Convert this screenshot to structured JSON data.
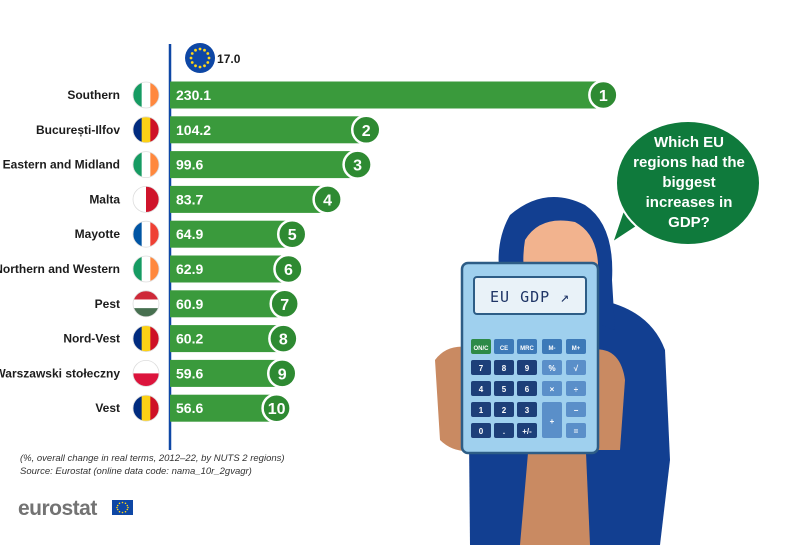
{
  "chart_data": {
    "type": "bar",
    "orientation": "horizontal",
    "reference": {
      "label": "EU",
      "value": 17.0,
      "display": "17.0"
    },
    "categories": [
      "Southern",
      "București-Ilfov",
      "Eastern and Midland",
      "Malta",
      "Mayotte",
      "Northern and Western",
      "Pest",
      "Nord-Vest",
      "Warszawski stołeczny",
      "Vest"
    ],
    "values": [
      230.1,
      104.2,
      99.6,
      83.7,
      64.9,
      62.9,
      60.9,
      60.2,
      59.6,
      56.6
    ],
    "value_labels": [
      "230.1",
      "104.2",
      "99.6",
      "83.7",
      "64.9",
      "62.9",
      "60.9",
      "60.2",
      "59.6",
      "56.6"
    ],
    "ranks": [
      "1",
      "2",
      "3",
      "4",
      "5",
      "6",
      "7",
      "8",
      "9",
      "10"
    ],
    "countries": [
      "Ireland",
      "Romania",
      "Ireland",
      "Malta",
      "France",
      "Ireland",
      "Hungary",
      "Romania",
      "Poland",
      "Romania"
    ],
    "flag_stripes": [
      [
        "#169b62",
        "#ffffff",
        "#ff883e"
      ],
      [
        "#002b7f",
        "#fcd116",
        "#ce1126"
      ],
      [
        "#169b62",
        "#ffffff",
        "#ff883e"
      ],
      [
        "#ffffff",
        "#cf142b"
      ],
      [
        "#0055a4",
        "#ffffff",
        "#ef4135"
      ],
      [
        "#169b62",
        "#ffffff",
        "#ff883e"
      ],
      [
        "#ce2939",
        "#ffffff",
        "#477050"
      ],
      [
        "#002b7f",
        "#fcd116",
        "#ce1126"
      ],
      [
        "#ffffff",
        "#dc143c"
      ],
      [
        "#002b7f",
        "#fcd116",
        "#ce1126"
      ]
    ],
    "flag_orientation": [
      "v",
      "v",
      "v",
      "v",
      "v",
      "v",
      "h",
      "v",
      "h",
      "v"
    ],
    "xlim": [
      0,
      240
    ],
    "grid": false,
    "bar_color": "#3a9a3c",
    "rank_color": "#2e8a32"
  },
  "notes": {
    "line1": "(%, overall change in real terms, 2012–22, by NUTS 2 regions)",
    "line2": "Source: Eurostat (online data code: nama_10r_2gvagr)"
  },
  "bubble": {
    "text": "Which EU regions had the biggest increases in GDP?",
    "color": "#0f7a3c"
  },
  "calculator": {
    "display": "EU GDP ↗",
    "keys": [
      "ON/C",
      "CE",
      "MRC",
      "M-",
      "M+",
      "7",
      "8",
      "9",
      "%",
      "√",
      "4",
      "5",
      "6",
      "×",
      "÷",
      "1",
      "2",
      "3",
      "−",
      "0",
      ".",
      "+/-",
      "+",
      "="
    ]
  },
  "brand": {
    "logo": "eurostat",
    "eu_blue": "#0e47a5",
    "eu_star": "#ffd617"
  }
}
